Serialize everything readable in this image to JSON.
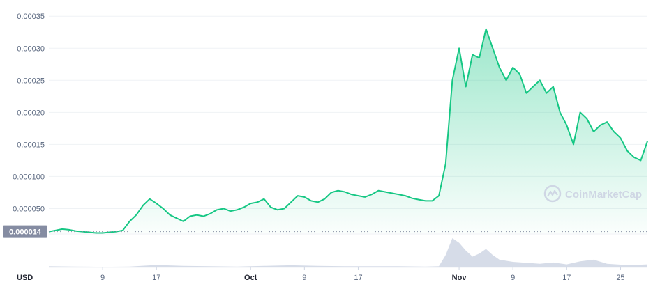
{
  "watermark": {
    "text": "CoinMarketCap",
    "icon": "coinmarketcap-logo-icon"
  },
  "currency_label": "USD",
  "current_price_label": "0.000014",
  "colors": {
    "line": "#16c784",
    "area_top": "#16c784",
    "volume": "#cfd6e4",
    "price_tag": "#858ca2",
    "grid": "#eff2f5",
    "axis_text": "#58667e"
  },
  "chart_data": {
    "type": "area",
    "title": "",
    "xlabel": "",
    "ylabel": "",
    "y_tick_labels": [
      "0.000050",
      "0.000100",
      "0.00015",
      "0.00020",
      "0.00025",
      "0.00030",
      "0.00035"
    ],
    "y_ticks": [
      5e-05,
      0.0001,
      0.00015,
      0.0002,
      0.00025,
      0.0003,
      0.00035
    ],
    "ylim": [
      1.25e-05,
      0.00036
    ],
    "x_ticks": [
      {
        "label": "9",
        "date": "2021-09-09",
        "bold": false
      },
      {
        "label": "17",
        "date": "2021-09-17",
        "bold": false
      },
      {
        "label": "Oct",
        "date": "2021-10-01",
        "bold": true
      },
      {
        "label": "9",
        "date": "2021-10-09",
        "bold": false
      },
      {
        "label": "17",
        "date": "2021-10-17",
        "bold": false
      },
      {
        "label": "Nov",
        "date": "2021-11-01",
        "bold": true
      },
      {
        "label": "9",
        "date": "2021-11-09",
        "bold": false
      },
      {
        "label": "17",
        "date": "2021-11-17",
        "bold": false
      },
      {
        "label": "25",
        "date": "2021-11-25",
        "bold": false
      }
    ],
    "xlim": [
      "2021-09-01",
      "2021-11-29"
    ],
    "grid": true,
    "reference_line": {
      "value": 1.4e-05,
      "style": "dotted"
    },
    "series": [
      {
        "values_x": [
          "2021-09-01",
          "2021-09-02",
          "2021-09-03",
          "2021-09-04",
          "2021-09-05",
          "2021-09-06",
          "2021-09-07",
          "2021-09-08",
          "2021-09-09",
          "2021-09-10",
          "2021-09-11",
          "2021-09-12",
          "2021-09-13",
          "2021-09-14",
          "2021-09-15",
          "2021-09-16",
          "2021-09-17",
          "2021-09-18",
          "2021-09-19",
          "2021-09-20",
          "2021-09-21",
          "2021-09-22",
          "2021-09-23",
          "2021-09-24",
          "2021-09-25",
          "2021-09-26",
          "2021-09-27",
          "2021-09-28",
          "2021-09-29",
          "2021-09-30",
          "2021-10-01",
          "2021-10-02",
          "2021-10-03",
          "2021-10-04",
          "2021-10-05",
          "2021-10-06",
          "2021-10-07",
          "2021-10-08",
          "2021-10-09",
          "2021-10-10",
          "2021-10-11",
          "2021-10-12",
          "2021-10-13",
          "2021-10-14",
          "2021-10-15",
          "2021-10-16",
          "2021-10-17",
          "2021-10-18",
          "2021-10-19",
          "2021-10-20",
          "2021-10-21",
          "2021-10-22",
          "2021-10-23",
          "2021-10-24",
          "2021-10-25",
          "2021-10-26",
          "2021-10-27",
          "2021-10-28",
          "2021-10-29",
          "2021-10-30",
          "2021-10-31",
          "2021-11-01",
          "2021-11-02",
          "2021-11-03",
          "2021-11-04",
          "2021-11-05",
          "2021-11-06",
          "2021-11-07",
          "2021-11-08",
          "2021-11-09",
          "2021-11-10",
          "2021-11-11",
          "2021-11-12",
          "2021-11-13",
          "2021-11-14",
          "2021-11-15",
          "2021-11-16",
          "2021-11-17",
          "2021-11-18",
          "2021-11-19",
          "2021-11-20",
          "2021-11-21",
          "2021-11-22",
          "2021-11-23",
          "2021-11-24",
          "2021-11-25",
          "2021-11-26",
          "2021-11-27",
          "2021-11-28",
          "2021-11-29"
        ],
        "values": [
          1.4e-05,
          1.6e-05,
          1.8e-05,
          1.7e-05,
          1.5e-05,
          1.4e-05,
          1.3e-05,
          1.2e-05,
          1.2e-05,
          1.3e-05,
          1.4e-05,
          1.6e-05,
          3e-05,
          4e-05,
          5.5e-05,
          6.5e-05,
          5.8e-05,
          5e-05,
          4e-05,
          3.5e-05,
          3e-05,
          3.8e-05,
          4e-05,
          3.8e-05,
          4.2e-05,
          4.8e-05,
          5e-05,
          4.6e-05,
          4.8e-05,
          5.2e-05,
          5.8e-05,
          6e-05,
          6.5e-05,
          5.2e-05,
          4.8e-05,
          5e-05,
          6e-05,
          7e-05,
          6.8e-05,
          6.2e-05,
          6e-05,
          6.5e-05,
          7.5e-05,
          7.8e-05,
          7.6e-05,
          7.2e-05,
          7e-05,
          6.8e-05,
          7.2e-05,
          7.8e-05,
          7.6e-05,
          7.4e-05,
          7.2e-05,
          7e-05,
          6.6e-05,
          6.4e-05,
          6.2e-05,
          6.2e-05,
          7e-05,
          0.00012,
          0.00025,
          0.0003,
          0.00024,
          0.00029,
          0.000285,
          0.00033,
          0.0003,
          0.00027,
          0.00025,
          0.00027,
          0.00026,
          0.00023,
          0.00024,
          0.00025,
          0.00023,
          0.00024,
          0.0002,
          0.00018,
          0.00015,
          0.0002,
          0.00019,
          0.00017,
          0.00018,
          0.000185,
          0.00017,
          0.00016,
          0.00014,
          0.00013,
          0.000125,
          0.000155
        ]
      }
    ],
    "volume": {
      "x": [
        "2021-09-01",
        "2021-09-05",
        "2021-09-09",
        "2021-09-13",
        "2021-09-17",
        "2021-09-21",
        "2021-09-25",
        "2021-09-29",
        "2021-10-03",
        "2021-10-07",
        "2021-10-11",
        "2021-10-15",
        "2021-10-19",
        "2021-10-23",
        "2021-10-27",
        "2021-10-29",
        "2021-10-30",
        "2021-10-31",
        "2021-11-01",
        "2021-11-02",
        "2021-11-03",
        "2021-11-04",
        "2021-11-05",
        "2021-11-06",
        "2021-11-07",
        "2021-11-09",
        "2021-11-11",
        "2021-11-13",
        "2021-11-15",
        "2021-11-17",
        "2021-11-19",
        "2021-11-21",
        "2021-11-23",
        "2021-11-25",
        "2021-11-27",
        "2021-11-29"
      ],
      "values": [
        4,
        3,
        2,
        3,
        8,
        5,
        4,
        3,
        5,
        7,
        5,
        4,
        4,
        4,
        3,
        4,
        40,
        95,
        80,
        55,
        35,
        45,
        60,
        40,
        25,
        18,
        15,
        12,
        16,
        10,
        20,
        25,
        12,
        9,
        8,
        10
      ]
    }
  }
}
